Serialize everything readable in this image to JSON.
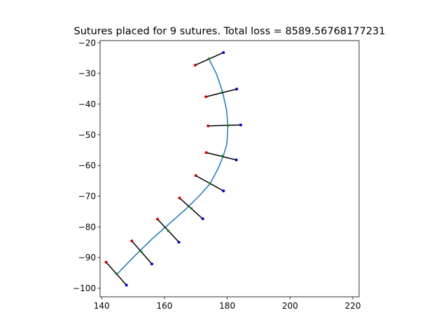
{
  "chart_data": {
    "type": "line",
    "title": "Sutures placed for 9 sutures. Total loss = 8589.56768177231",
    "xlabel": "",
    "ylabel": "",
    "xlim": [
      139.5,
      222
    ],
    "ylim": [
      -102.8,
      -19.3
    ],
    "x_ticks": [
      140,
      160,
      180,
      200,
      220
    ],
    "y_ticks": [
      -20,
      -30,
      -40,
      -50,
      -60,
      -70,
      -80,
      -90,
      -100
    ],
    "x_tick_labels": [
      "140",
      "160",
      "180",
      "200",
      "220"
    ],
    "y_tick_labels": [
      "−20",
      "−30",
      "−40",
      "−50",
      "−60",
      "−70",
      "−80",
      "−90",
      "−100"
    ],
    "grid": false,
    "legend": "none",
    "colors": {
      "curve": "#1f77b4",
      "suture": "#000000",
      "insertion_point": "#cc0000",
      "extraction_point": "#0000cc",
      "center_point": "#008000"
    },
    "wound_curve": {
      "x": [
        174,
        176.5,
        178.5,
        179.8,
        180.2,
        179.9,
        178.7,
        177.1,
        174.5,
        171,
        166.5,
        161.5,
        156,
        150.5,
        144.8
      ],
      "y": [
        -25,
        -30,
        -36,
        -42,
        -47,
        -53,
        -57,
        -61,
        -66,
        -70,
        -74.5,
        -79,
        -84,
        -89.5,
        -95.5
      ]
    },
    "sutures": [
      {
        "insertion": [
          169.8,
          -27.3
        ],
        "center": [
          174.1,
          -25.2
        ],
        "extraction": [
          178.8,
          -23.2
        ]
      },
      {
        "insertion": [
          173.2,
          -37.6
        ],
        "center": [
          178.2,
          -36.3
        ],
        "extraction": [
          183.0,
          -35.1
        ]
      },
      {
        "insertion": [
          173.9,
          -47.1
        ],
        "center": [
          180.2,
          -47.0
        ],
        "extraction": [
          184.3,
          -46.8
        ]
      },
      {
        "insertion": [
          173.3,
          -55.8
        ],
        "center": [
          178.3,
          -56.9
        ],
        "extraction": [
          182.9,
          -58.2
        ]
      },
      {
        "insertion": [
          170.0,
          -63.3
        ],
        "center": [
          174.5,
          -65.9
        ],
        "extraction": [
          178.8,
          -68.3
        ]
      },
      {
        "insertion": [
          164.8,
          -70.6
        ],
        "center": [
          168.6,
          -74.0
        ],
        "extraction": [
          172.2,
          -77.4
        ]
      },
      {
        "insertion": [
          157.8,
          -77.5
        ],
        "center": [
          161.2,
          -81.3
        ],
        "extraction": [
          164.6,
          -85.0
        ]
      },
      {
        "insertion": [
          149.6,
          -84.6
        ],
        "center": [
          152.8,
          -88.3
        ],
        "extraction": [
          156.0,
          -92.1
        ]
      },
      {
        "insertion": [
          141.4,
          -91.5
        ],
        "center": [
          144.6,
          -95.2
        ],
        "extraction": [
          147.9,
          -99.0
        ]
      }
    ]
  }
}
